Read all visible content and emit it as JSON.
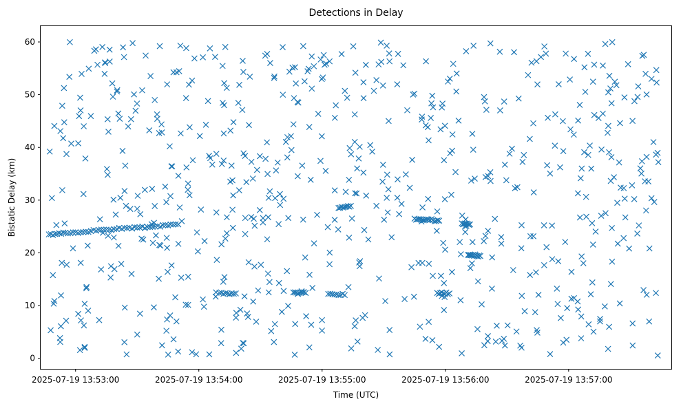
{
  "chart_data": {
    "type": "scatter",
    "title": "Detections in Delay",
    "xlabel": "Time (UTC)",
    "ylabel": "Bistatic Delay (km)",
    "marker": "x",
    "color": "#1f77b4",
    "grid": false,
    "legend": "none",
    "x_is_time": true,
    "xlim": [
      "2025-07-19 13:52:43",
      "2025-07-19 13:57:50"
    ],
    "ylim": [
      -2.0,
      63.0
    ],
    "x_ticks": [
      "2025-07-19 13:53:00",
      "2025-07-19 13:54:00",
      "2025-07-19 13:55:00",
      "2025-07-19 13:56:00",
      "2025-07-19 13:57:00"
    ],
    "y_ticks": [
      0,
      10,
      20,
      30,
      40,
      50,
      60
    ],
    "track_series": [
      {
        "x": [
          "2025-07-19 13:52:47",
          "2025-07-19 13:52:51",
          "2025-07-19 13:52:55",
          "2025-07-19 13:53:00",
          "2025-07-19 13:53:05",
          "2025-07-19 13:53:10",
          "2025-07-19 13:53:15",
          "2025-07-19 13:53:20",
          "2025-07-19 13:53:25",
          "2025-07-19 13:53:30",
          "2025-07-19 13:53:35",
          "2025-07-19 13:53:40",
          "2025-07-19 13:53:45",
          "2025-07-19 13:53:50"
        ],
        "y": [
          23.5,
          23.6,
          23.8,
          23.9,
          24.0,
          24.2,
          24.4,
          24.5,
          24.7,
          24.8,
          24.9,
          25.1,
          25.2,
          25.4
        ]
      },
      {
        "x": [
          "2025-07-19 13:55:45",
          "2025-07-19 13:55:48",
          "2025-07-19 13:55:51",
          "2025-07-19 13:55:54",
          "2025-07-19 13:55:57"
        ],
        "y": [
          26.5,
          26.4,
          26.3,
          26.2,
          26.1
        ]
      },
      {
        "x": [
          "2025-07-19 13:56:11",
          "2025-07-19 13:56:13",
          "2025-07-19 13:56:15",
          "2025-07-19 13:56:17"
        ],
        "y": [
          19.6,
          19.5,
          19.5,
          19.4
        ]
      },
      {
        "x": [
          "2025-07-19 13:56:08",
          "2025-07-19 13:56:10",
          "2025-07-19 13:56:12"
        ],
        "y": [
          25.6,
          25.5,
          25.4
        ]
      },
      {
        "x": [
          "2025-07-19 13:55:03",
          "2025-07-19 13:55:07",
          "2025-07-19 13:55:11"
        ],
        "y": [
          12.2,
          12.1,
          12.0
        ]
      },
      {
        "x": [
          "2025-07-19 13:54:10",
          "2025-07-19 13:54:14",
          "2025-07-19 13:54:18"
        ],
        "y": [
          12.4,
          12.3,
          12.3
        ]
      },
      {
        "x": [
          "2025-07-19 13:54:46",
          "2025-07-19 13:54:49",
          "2025-07-19 13:54:52"
        ],
        "y": [
          12.5,
          12.4,
          12.4
        ]
      },
      {
        "x": [
          "2025-07-19 13:55:56",
          "2025-07-19 13:55:59",
          "2025-07-19 13:56:02"
        ],
        "y": [
          12.4,
          12.3,
          12.3
        ]
      },
      {
        "x": [
          "2025-07-19 13:55:08",
          "2025-07-19 13:55:11",
          "2025-07-19 13:55:14"
        ],
        "y": [
          28.5,
          28.7,
          28.9
        ]
      }
    ],
    "background_points": {
      "x_range": [
        "2025-07-19 13:52:47",
        "2025-07-19 13:57:44"
      ],
      "y_range": [
        0.5,
        60.0
      ],
      "count": 700
    }
  }
}
